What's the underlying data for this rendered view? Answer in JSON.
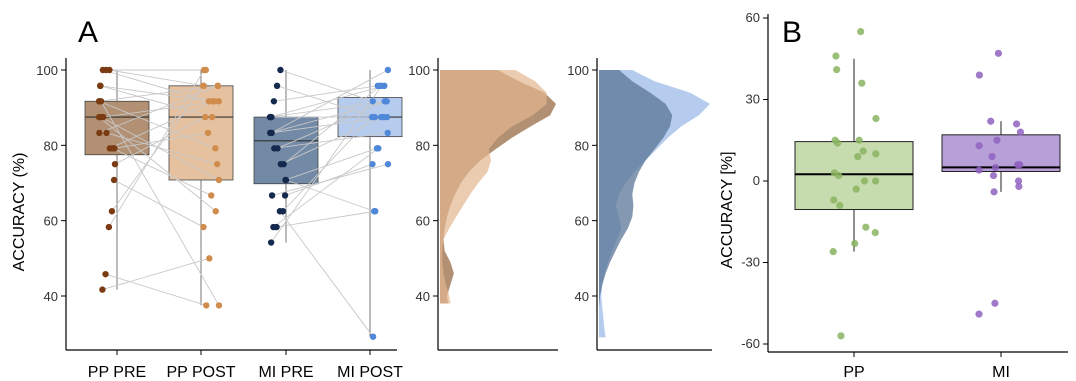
{
  "chart_data": [
    {
      "panel": "A",
      "type": "box",
      "ylabel": "ACCURACY (%)",
      "ylim": [
        36,
        102
      ],
      "yticks": [
        40,
        60,
        80,
        100
      ],
      "categories": [
        "PP PRE",
        "PP POST",
        "MI PRE",
        "MI POST"
      ],
      "colors": {
        "PP PRE": "#a57c5a",
        "PP POST": "#e2b68e",
        "MI PRE": "#5b7597",
        "MI POST": "#a8c3eb",
        "PP PRE_pt": "#7a3b12",
        "PP POST_pt": "#d08c4c",
        "MI PRE_pt": "#15294f",
        "MI POST_pt": "#4f88d8"
      },
      "boxes": [
        {
          "q1": 77.5,
          "median": 87.5,
          "q3": 91.7,
          "min": 41.7,
          "max": 100
        },
        {
          "q1": 70.8,
          "median": 87.5,
          "q3": 95.8,
          "min": 37.5,
          "max": 100
        },
        {
          "q1": 69.8,
          "median": 81.2,
          "q3": 87.5,
          "min": 54.2,
          "max": 100
        },
        {
          "q1": 82.3,
          "median": 87.5,
          "q3": 92.7,
          "min": 29.2,
          "max": 100
        }
      ],
      "pp_pairs": [
        [
          100,
          95.8
        ],
        [
          100,
          100
        ],
        [
          100,
          91.7
        ],
        [
          95.8,
          87.5
        ],
        [
          91.7,
          79.2
        ],
        [
          91.7,
          95.8
        ],
        [
          87.5,
          70.8
        ],
        [
          87.5,
          91.7
        ],
        [
          83.3,
          75
        ],
        [
          79.2,
          91.7
        ],
        [
          79.2,
          66.7
        ],
        [
          79.2,
          83.3
        ],
        [
          75,
          87.5
        ],
        [
          70.8,
          58.3
        ],
        [
          62.5,
          95.8
        ],
        [
          58.3,
          100
        ],
        [
          45.8,
          37.5
        ],
        [
          41.7,
          50
        ],
        [
          95.8,
          91.7
        ],
        [
          87.5,
          62.5
        ],
        [
          83.3,
          95.8
        ],
        [
          91.7,
          37.5
        ]
      ],
      "mi_pairs": [
        [
          100,
          91.7
        ],
        [
          95.8,
          87.5
        ],
        [
          91.7,
          95.8
        ],
        [
          87.5,
          87.5
        ],
        [
          87.5,
          95.8
        ],
        [
          83.3,
          91.7
        ],
        [
          83.3,
          100
        ],
        [
          79.2,
          83.3
        ],
        [
          79.2,
          91.7
        ],
        [
          75,
          87.5
        ],
        [
          75,
          95.8
        ],
        [
          70.8,
          79.2
        ],
        [
          70.8,
          62.5
        ],
        [
          66.7,
          75
        ],
        [
          62.5,
          87.5
        ],
        [
          62.5,
          29.2
        ],
        [
          58.3,
          62.5
        ],
        [
          58.3,
          79.2
        ],
        [
          54.2,
          95.8
        ],
        [
          87.5,
          91.7
        ],
        [
          83.3,
          87.5
        ],
        [
          66.7,
          75
        ]
      ]
    },
    {
      "panel": "A-density-PP",
      "type": "area",
      "ylim": [
        36,
        102
      ],
      "yticks": [
        40,
        60,
        80,
        100
      ],
      "y": [
        38,
        40,
        43,
        46,
        49,
        52,
        55,
        58,
        61,
        64,
        67,
        70,
        73,
        76,
        79,
        82,
        85,
        88,
        91,
        94,
        97,
        100
      ],
      "series": [
        {
          "color": "#a57c5a",
          "opacity": 0.85,
          "values": [
            0.07,
            0.06,
            0.09,
            0.12,
            0.09,
            0.04,
            0.03,
            0.04,
            0.06,
            0.09,
            0.13,
            0.18,
            0.25,
            0.35,
            0.48,
            0.62,
            0.78,
            0.95,
            1.0,
            0.9,
            0.68,
            0.5
          ]
        },
        {
          "color": "#e2b68e",
          "opacity": 0.7,
          "values": [
            0.09,
            0.08,
            0.05,
            0.03,
            0.02,
            0.02,
            0.03,
            0.08,
            0.14,
            0.2,
            0.26,
            0.33,
            0.41,
            0.44,
            0.42,
            0.5,
            0.62,
            0.8,
            0.92,
            0.92,
            0.82,
            0.65
          ]
        }
      ]
    },
    {
      "panel": "A-density-MI",
      "type": "area",
      "ylim": [
        36,
        102
      ],
      "yticks": [
        40,
        60,
        80,
        100
      ],
      "y": [
        29,
        31,
        34,
        37,
        40,
        43,
        46,
        49,
        52,
        55,
        58,
        61,
        64,
        67,
        70,
        73,
        76,
        79,
        82,
        85,
        88,
        91,
        94,
        97,
        100
      ],
      "series": [
        {
          "color": "#a8c3eb",
          "opacity": 0.85,
          "values": [
            0.06,
            0.05,
            0.04,
            0.03,
            0.02,
            0.03,
            0.05,
            0.08,
            0.12,
            0.16,
            0.2,
            0.18,
            0.15,
            0.18,
            0.24,
            0.32,
            0.42,
            0.52,
            0.62,
            0.74,
            0.9,
            1.0,
            0.82,
            0.5,
            0.3
          ]
        },
        {
          "color": "#5b7597",
          "opacity": 0.75,
          "values": [
            0.0,
            0.0,
            0.0,
            0.0,
            0.01,
            0.03,
            0.06,
            0.1,
            0.15,
            0.2,
            0.26,
            0.3,
            0.31,
            0.3,
            0.32,
            0.36,
            0.42,
            0.5,
            0.58,
            0.64,
            0.66,
            0.6,
            0.46,
            0.3,
            0.18
          ]
        }
      ]
    },
    {
      "panel": "B",
      "type": "box",
      "ylabel": "ACCURACY [%]",
      "ylim": [
        -62,
        62
      ],
      "yticks": [
        -60,
        -30,
        0,
        30,
        60
      ],
      "categories": [
        "PP",
        "MI"
      ],
      "colors": {
        "PP": "#c6dbae",
        "MI": "#b7a0d8",
        "PP_pt": "#8ab460",
        "MI_pt": "#8f62c0"
      },
      "boxes": [
        {
          "q1": -10.5,
          "median": 2.5,
          "q3": 14.5,
          "min": -26,
          "max": 45
        },
        {
          "q1": 3.5,
          "median": 5,
          "q3": 17,
          "min": -4,
          "max": 22
        }
      ],
      "points": [
        [
          55,
          46,
          41,
          36,
          23,
          15,
          15,
          14,
          11,
          10,
          9,
          3,
          2,
          0,
          0,
          -3,
          -7,
          -9,
          -17,
          -19,
          -23,
          -26,
          -57
        ],
        [
          47,
          39,
          22,
          21,
          18,
          15,
          13,
          9,
          6,
          6,
          5,
          4,
          2,
          0,
          -2,
          -4,
          -49,
          -45
        ]
      ]
    }
  ]
}
